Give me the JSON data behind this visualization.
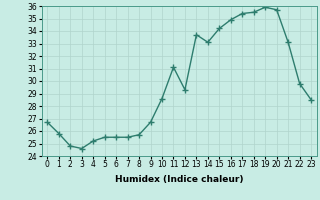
{
  "xlabel": "Humidex (Indice chaleur)",
  "x": [
    0,
    1,
    2,
    3,
    4,
    5,
    6,
    7,
    8,
    9,
    10,
    11,
    12,
    13,
    14,
    15,
    16,
    17,
    18,
    19,
    20,
    21,
    22,
    23
  ],
  "y": [
    26.7,
    25.8,
    24.8,
    24.6,
    25.2,
    25.5,
    25.5,
    25.5,
    25.7,
    26.7,
    28.6,
    31.1,
    29.3,
    33.7,
    33.1,
    34.2,
    34.9,
    35.4,
    35.5,
    35.9,
    35.7,
    33.1,
    29.8,
    28.5
  ],
  "line_color": "#2e7d6e",
  "marker": "+",
  "marker_size": 4,
  "marker_color": "#2e7d6e",
  "bg_color": "#c8ece4",
  "grid_color": "#b0d4cc",
  "ylim": [
    24,
    36
  ],
  "xlim": [
    -0.5,
    23.5
  ],
  "yticks": [
    24,
    25,
    26,
    27,
    28,
    29,
    30,
    31,
    32,
    33,
    34,
    35,
    36
  ],
  "xticks": [
    0,
    1,
    2,
    3,
    4,
    5,
    6,
    7,
    8,
    9,
    10,
    11,
    12,
    13,
    14,
    15,
    16,
    17,
    18,
    19,
    20,
    21,
    22,
    23
  ],
  "tick_fontsize": 5.5,
  "label_fontsize": 6.5,
  "line_width": 1.0
}
